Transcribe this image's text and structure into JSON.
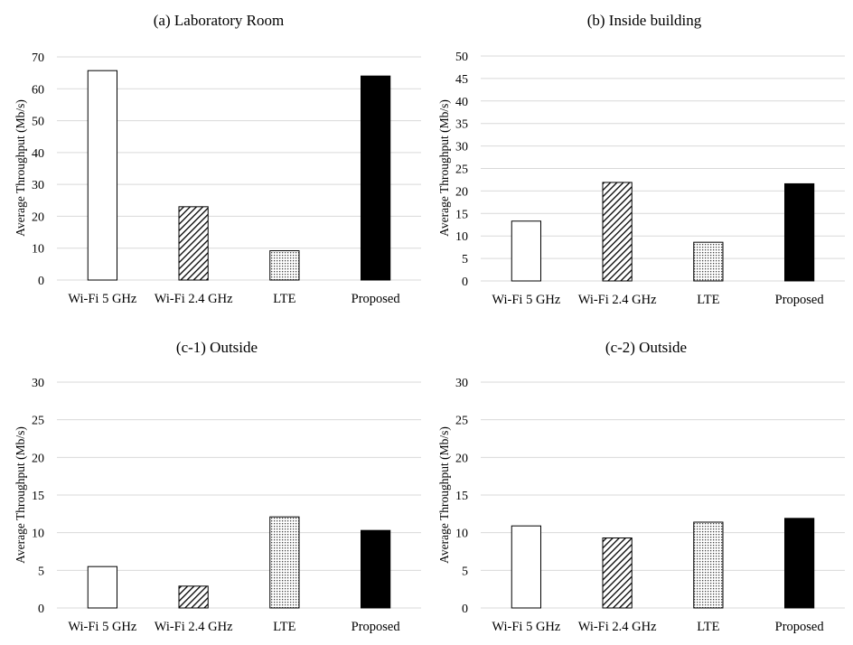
{
  "colors": {
    "grid": "#d9d9d9",
    "bar_stroke": "#000000",
    "text": "#000000"
  },
  "chart_data": [
    {
      "type": "bar",
      "title": "(a) Laboratory Room",
      "ylabel": "Average Throughput (Mb/s)",
      "xlabel": "",
      "categories": [
        "Wi-Fi 5 GHz",
        "Wi-Fi 2.4 GHz",
        "LTE",
        "Proposed"
      ],
      "values": [
        65.7,
        23.0,
        9.2,
        64.0
      ],
      "patterns": [
        "white",
        "diagonal-hatch",
        "dotted",
        "solid-black"
      ],
      "ylim": [
        0,
        70
      ],
      "yticks": [
        0,
        10,
        20,
        30,
        40,
        50,
        60,
        70
      ],
      "grid": true
    },
    {
      "type": "bar",
      "title": "(b) Inside building",
      "ylabel": "Average Throughput (Mb/s)",
      "xlabel": "",
      "categories": [
        "Wi-Fi 5 GHz",
        "Wi-Fi 2.4 GHz",
        "LTE",
        "Proposed"
      ],
      "values": [
        13.3,
        21.9,
        8.6,
        21.6
      ],
      "patterns": [
        "white",
        "diagonal-hatch",
        "dotted",
        "solid-black"
      ],
      "ylim": [
        0,
        50
      ],
      "yticks": [
        0,
        5,
        10,
        15,
        20,
        25,
        30,
        35,
        40,
        45,
        50
      ],
      "grid": true
    },
    {
      "type": "bar",
      "title": "(c-1) Outside",
      "ylabel": "Average Throughput (Mb/s)",
      "xlabel": "",
      "categories": [
        "Wi-Fi 5 GHz",
        "Wi-Fi 2.4 GHz",
        "LTE",
        "Proposed"
      ],
      "values": [
        5.5,
        2.9,
        12.1,
        10.3
      ],
      "patterns": [
        "white",
        "diagonal-hatch",
        "dotted",
        "solid-black"
      ],
      "ylim": [
        0,
        30
      ],
      "yticks": [
        0,
        5,
        10,
        15,
        20,
        25,
        30
      ],
      "grid": true
    },
    {
      "type": "bar",
      "title": "(c-2) Outside",
      "ylabel": "Average Throughput (Mb/s)",
      "xlabel": "",
      "categories": [
        "Wi-Fi 5 GHz",
        "Wi-Fi 2.4 GHz",
        "LTE",
        "Proposed"
      ],
      "values": [
        10.9,
        9.3,
        11.4,
        11.9
      ],
      "patterns": [
        "white",
        "diagonal-hatch",
        "dotted",
        "solid-black"
      ],
      "ylim": [
        0,
        30
      ],
      "yticks": [
        0,
        5,
        10,
        15,
        20,
        25,
        30
      ],
      "grid": true
    }
  ]
}
